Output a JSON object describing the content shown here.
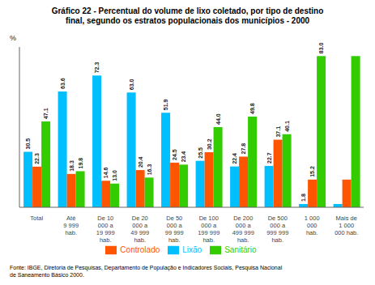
{
  "chart_data": {
    "type": "bar",
    "title": "Gráfico 22 - Percentual do volume de lixo coletado, por tipo de destino\nfinal, segundo os estratos populacionais dos municípios - 2000",
    "categories": [
      "Total",
      "Até\n9 999\nhab.",
      "De 10\n000 a\n19 999\nhab.",
      "De 20\n000 a\n49 999\nhab.",
      "De 50\n000 a\n99 999\nhab.",
      "De 100\n000 a\n199 999\nhab.",
      "De 200\n000 a\n499 999\nhab.",
      "De 500\n000 a\n999 999\nhab.",
      "1 000\n000\nhab.",
      "Mais de\n1 000\n000 hab."
    ],
    "series": [
      {
        "name": "Lixão",
        "color": "#00BFFF",
        "values": [
          30.5,
          63.6,
          72.3,
          63.0,
          51.9,
          25.5,
          22.4,
          22.7,
          1.8,
          1.8
        ],
        "value_labels": [
          "30.5",
          "63.6",
          "72.3",
          "63.0",
          "51.9",
          "25.5",
          "22.4",
          "22.7",
          "1.8",
          null
        ]
      },
      {
        "name": "Controlado",
        "color": "#FF5500",
        "values": [
          22.3,
          18.3,
          14.6,
          20.4,
          24.5,
          30.2,
          27.8,
          37.1,
          15.2,
          15.2
        ],
        "value_labels": [
          "22.3",
          "18.3",
          "14.6",
          "20.4",
          "24.5",
          "30.2",
          "27.8",
          "37.1",
          "15.2",
          null
        ]
      },
      {
        "name": "Sanitário",
        "color": "#33CC00",
        "values": [
          47.1,
          19.8,
          13.0,
          16.3,
          23.4,
          44.0,
          49.8,
          40.1,
          83.0,
          83.0
        ],
        "value_labels": [
          "47.1",
          "19.8",
          "13.0",
          "16.3",
          "23.4",
          "44.0",
          "49.8",
          "40.1",
          "83.0",
          null
        ]
      }
    ],
    "ylabel": "%",
    "ylim": [
      0,
      88
    ],
    "annotations": [
      "Fonte: IBGE, Diretoria de Pesquisas, Departamento de População e Indicadores Sociais, Pesquisa Nacional\nde Saneamento Básico 2000."
    ],
    "data_labels": true,
    "tick_labels": "x",
    "grid": false,
    "legend": "bottom"
  }
}
